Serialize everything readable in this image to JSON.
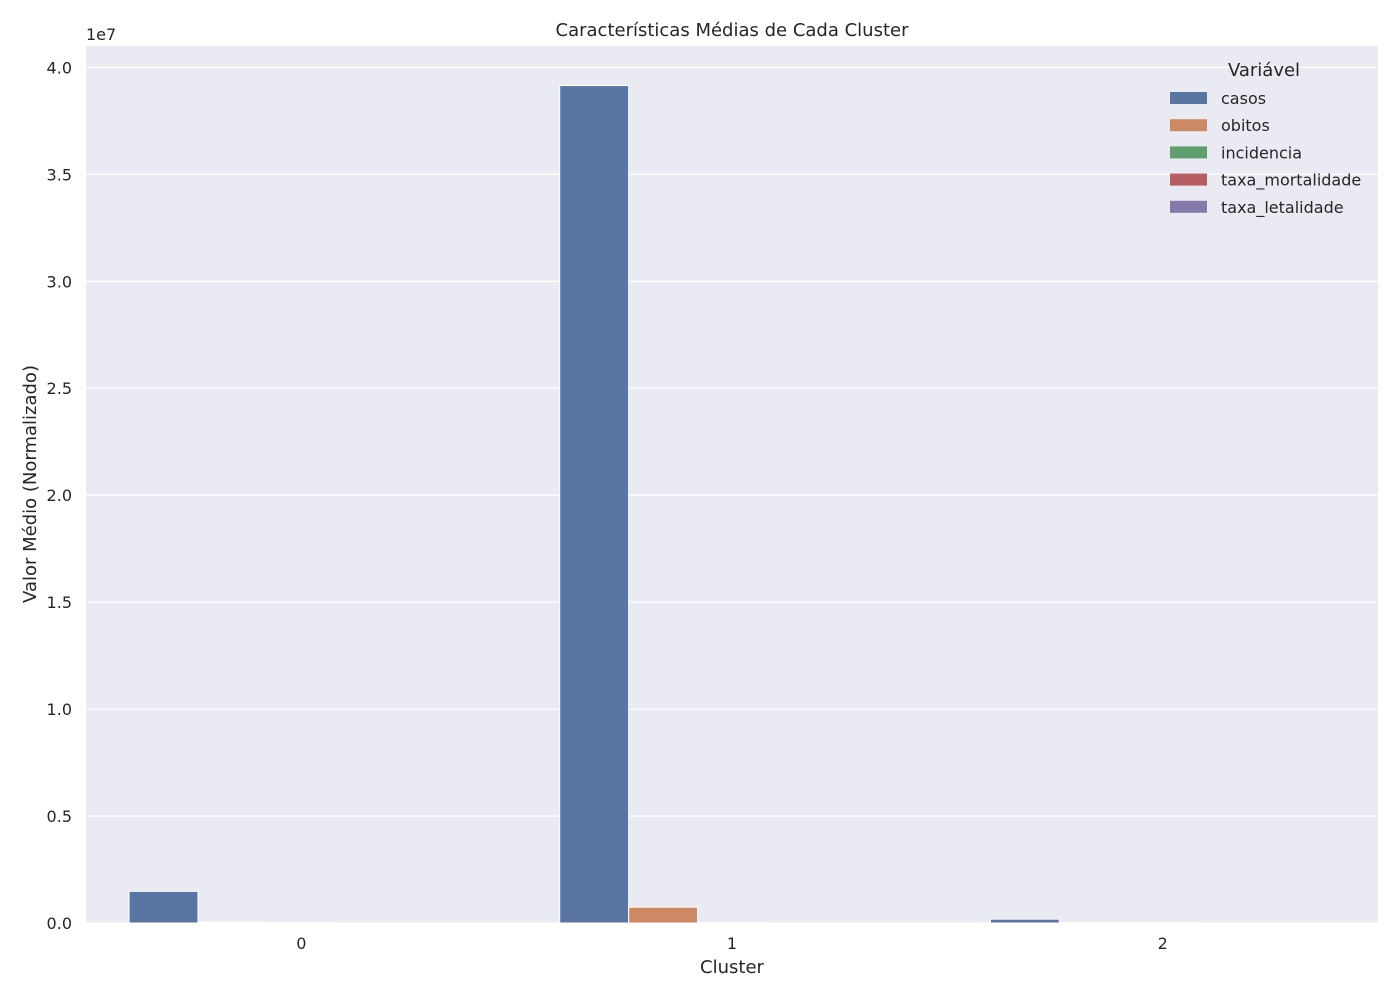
{
  "chart_data": {
    "type": "bar",
    "title": "Características Médias de Cada Cluster",
    "xlabel": "Cluster",
    "ylabel": "Valor Médio (Normalizado)",
    "y_offset_label": "1e7",
    "categories": [
      "0",
      "1",
      "2"
    ],
    "ylim": [
      0,
      41000000
    ],
    "yticks": [
      0,
      5000000,
      10000000,
      15000000,
      20000000,
      25000000,
      30000000,
      35000000,
      40000000
    ],
    "ytick_labels": [
      "0.0",
      "0.5",
      "1.0",
      "1.5",
      "2.0",
      "2.5",
      "3.0",
      "3.5",
      "4.0"
    ],
    "grid": true,
    "legend": {
      "title": "Variável",
      "placement": "top-right"
    },
    "series": [
      {
        "name": "casos",
        "color": "#5975a4",
        "values": [
          1480000,
          39150000,
          180000
        ]
      },
      {
        "name": "obitos",
        "color": "#cc8963",
        "values": [
          40000,
          740000,
          6000
        ]
      },
      {
        "name": "incidencia",
        "color": "#5f9e6e",
        "values": [
          20000,
          20000,
          15000
        ]
      },
      {
        "name": "taxa_mortalidade",
        "color": "#b55d60",
        "values": [
          300,
          300,
          300
        ]
      },
      {
        "name": "taxa_letalidade",
        "color": "#857aab",
        "values": [
          3,
          3,
          3
        ]
      }
    ]
  }
}
